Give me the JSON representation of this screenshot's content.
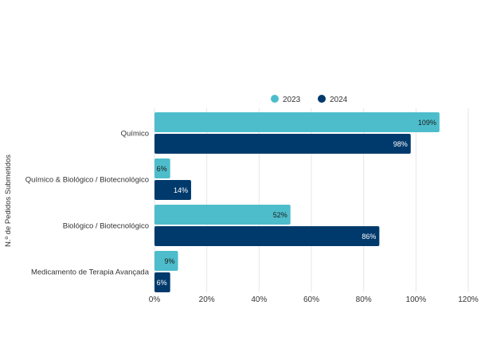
{
  "chart_data": {
    "type": "bar",
    "orientation": "horizontal",
    "title": "",
    "xlabel": "",
    "ylabel": "N.º de Pedidos Submetidos",
    "categories": [
      "Químico",
      "Químico & Biológico / Biotecnológico",
      "Biológico / Biotecnológico",
      "Medicamento de Terapia Avançada"
    ],
    "series": [
      {
        "name": "2023",
        "color": "#4dbdcb",
        "values": [
          109,
          6,
          52,
          9
        ],
        "labels": [
          "109%",
          "6%",
          "52%",
          "9%"
        ]
      },
      {
        "name": "2024",
        "color": "#003a6c",
        "values": [
          98,
          14,
          86,
          6
        ],
        "labels": [
          "98%",
          "14%",
          "86%",
          "6%"
        ]
      }
    ],
    "xlim": [
      0,
      120
    ],
    "xticks": [
      0,
      20,
      40,
      60,
      80,
      100,
      120
    ],
    "xtick_labels": [
      "0%",
      "20%",
      "40%",
      "60%",
      "80%",
      "100%",
      "120%"
    ],
    "grid": true,
    "legend_position": "top"
  }
}
